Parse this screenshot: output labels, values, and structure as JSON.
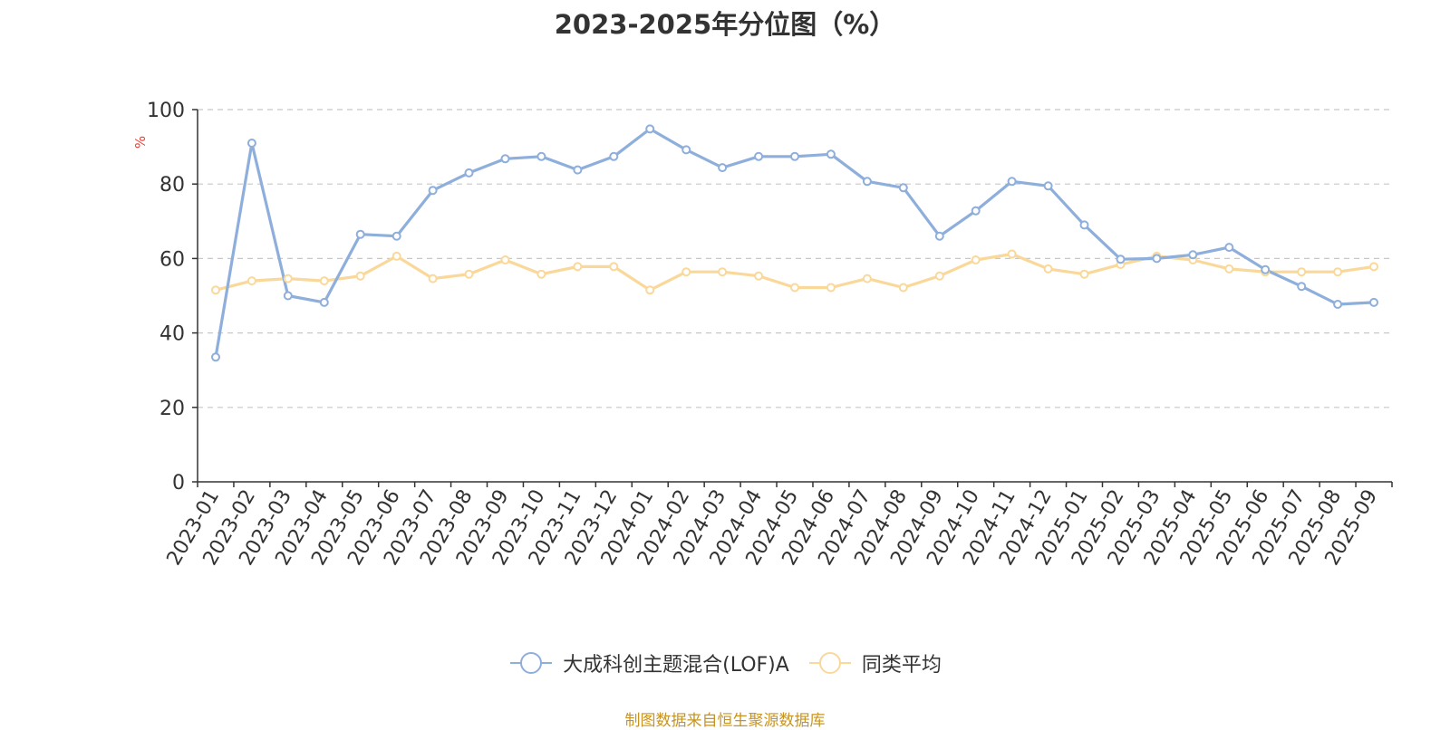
{
  "chart_data": {
    "type": "line",
    "title": "2023-2025年分位图（%）",
    "ylabel": "%",
    "ylim": [
      0,
      100
    ],
    "yticks": [
      0,
      20,
      40,
      60,
      80,
      100
    ],
    "grid": true,
    "legend_position": "bottom",
    "categories": [
      "2023-01",
      "2023-02",
      "2023-03",
      "2023-04",
      "2023-05",
      "2023-06",
      "2023-07",
      "2023-08",
      "2023-09",
      "2023-10",
      "2023-11",
      "2023-12",
      "2024-01",
      "2024-02",
      "2024-03",
      "2024-04",
      "2024-05",
      "2024-06",
      "2024-07",
      "2024-08",
      "2024-09",
      "2024-10",
      "2024-11",
      "2024-12",
      "2025-01",
      "2025-02",
      "2025-03",
      "2025-04",
      "2025-05",
      "2025-06",
      "2025-07",
      "2025-08",
      "2025-09"
    ],
    "series": [
      {
        "name": "大成科创主题混合(LOF)A",
        "color": "#8eaedb",
        "values": [
          33.5,
          91,
          50,
          48.2,
          66.5,
          66,
          78.3,
          83,
          86.8,
          87.4,
          83.8,
          87.4,
          94.8,
          89.2,
          84.4,
          87.4,
          87.4,
          88,
          80.7,
          79,
          66,
          72.8,
          80.7,
          79.5,
          69,
          59.8,
          60,
          61,
          63,
          57,
          52.5,
          47.7,
          48.2
        ]
      },
      {
        "name": "同类平均",
        "color": "#fad89a",
        "values": [
          51.5,
          54,
          54.6,
          54,
          55.3,
          60.6,
          54.6,
          55.8,
          59.6,
          55.8,
          57.8,
          57.8,
          51.5,
          56.4,
          56.4,
          55.3,
          52.2,
          52.2,
          54.6,
          52.2,
          55.3,
          59.6,
          61.2,
          57.2,
          55.8,
          58.4,
          60.6,
          59.6,
          57.2,
          56.4,
          56.4,
          56.4,
          57.8
        ]
      }
    ]
  },
  "footer": {
    "source": "制图数据来自恒生聚源数据库"
  }
}
